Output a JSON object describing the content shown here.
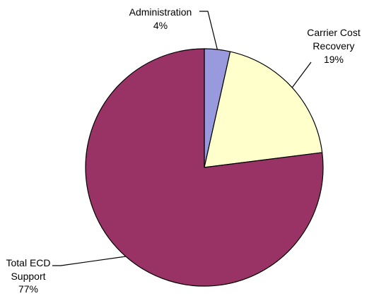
{
  "chart_data": {
    "type": "pie",
    "slices": [
      {
        "label_lines": [
          "Administration"
        ],
        "pct_text": "4%",
        "value": 3.5,
        "color": "#9999dd"
      },
      {
        "label_lines": [
          "Carrier Cost",
          "Recovery"
        ],
        "pct_text": "19%",
        "value": 19.5,
        "color": "#ffffcc"
      },
      {
        "label_lines": [
          "Total ECD",
          "Support"
        ],
        "pct_text": "77%",
        "value": 77,
        "color": "#993366"
      }
    ],
    "start_angle_deg": 0,
    "direction": "clockwise"
  }
}
